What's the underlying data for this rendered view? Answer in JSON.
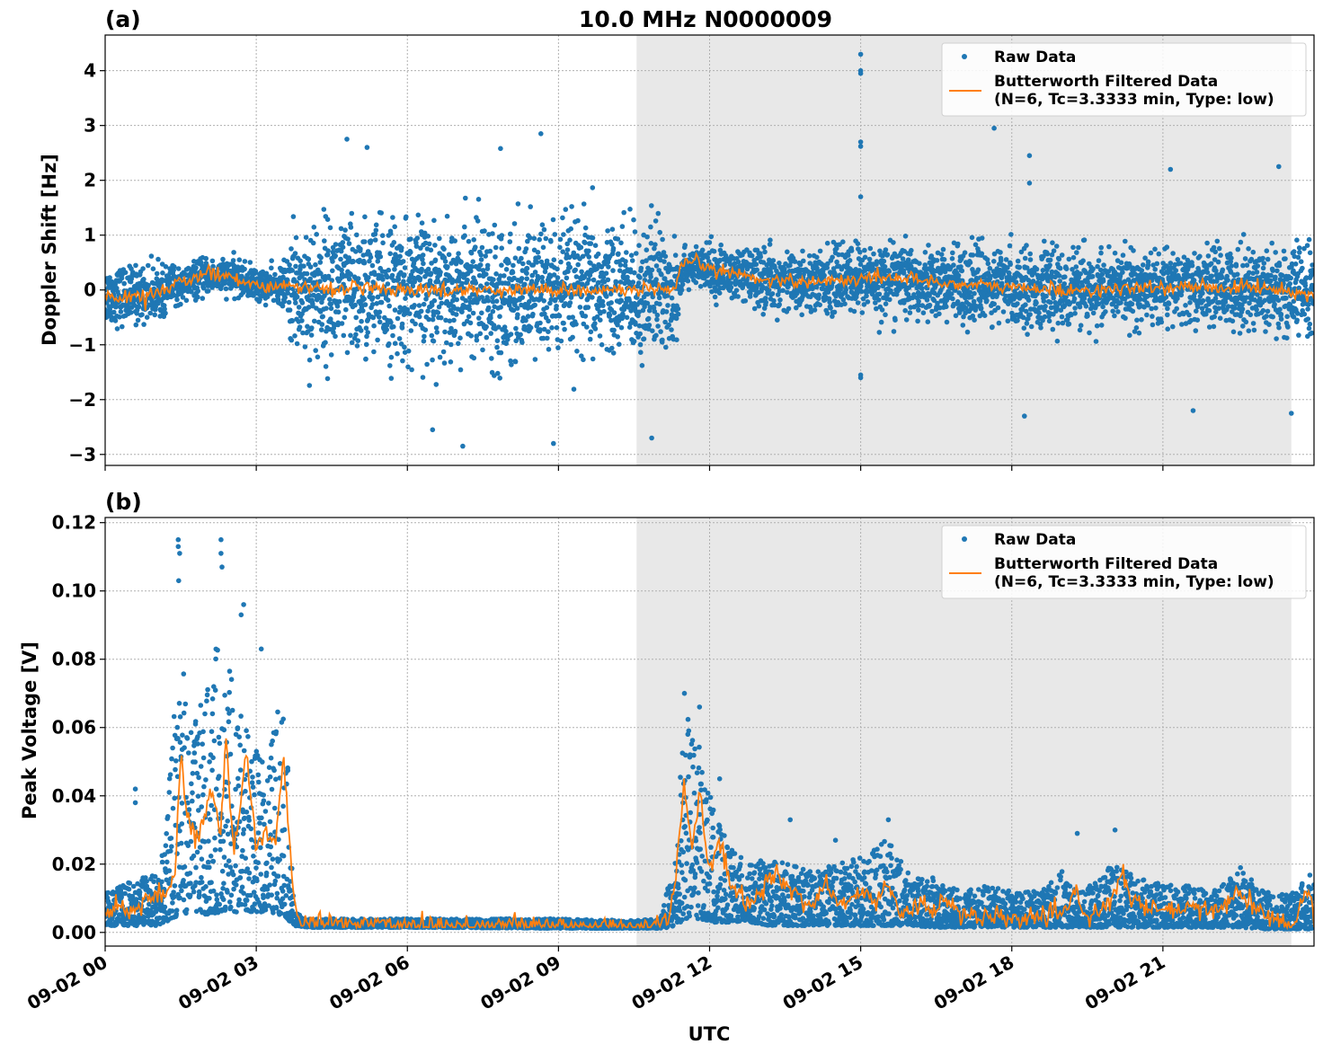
{
  "chart_data": {
    "type": "scatter",
    "title": "10.0 MHz N0000009",
    "xlabel": "UTC",
    "x_ticks": [
      "09-02 00",
      "09-02 03",
      "09-02 06",
      "09-02 09",
      "09-02 12",
      "09-02 15",
      "09-02 18",
      "09-02 21"
    ],
    "x_range_hours": [
      0,
      24
    ],
    "shaded_region_hours": [
      10.55,
      23.55
    ],
    "shade_color": "#e8e8e8",
    "grid": true,
    "legend_placement": "top-right",
    "panels": [
      {
        "panel_label": "(a)",
        "ylabel": "Doppler Shift [Hz]",
        "ylim": [
          -3.2,
          4.65
        ],
        "y_ticks": [
          -3,
          -2,
          -1,
          0,
          1,
          2,
          3,
          4
        ],
        "y_tick_labels": [
          "−3",
          "−2",
          "−1",
          "0",
          "1",
          "2",
          "3",
          "4"
        ],
        "series": [
          {
            "name": "Raw Data",
            "style": "markers",
            "color": "#1f77b4",
            "envelope": {
              "x": [
                0,
                0.5,
                1.0,
                1.5,
                2.0,
                2.5,
                3.0,
                3.5,
                3.75,
                4.0,
                5.0,
                6.0,
                7.0,
                8.0,
                9.0,
                10.0,
                10.5,
                11.0,
                11.3,
                11.5,
                12.0,
                13.0,
                14.0,
                15.0,
                16.0,
                17.0,
                18.0,
                19.0,
                20.0,
                21.0,
                22.0,
                23.0,
                24.0
              ],
              "center": [
                -0.1,
                -0.1,
                -0.05,
                0.1,
                0.25,
                0.25,
                0.1,
                0.05,
                0.0,
                0.0,
                0.0,
                0.0,
                0.0,
                0.0,
                0.0,
                0.0,
                0.0,
                0.0,
                0.0,
                0.45,
                0.35,
                0.2,
                0.15,
                0.2,
                0.2,
                0.1,
                0.05,
                0.0,
                0.0,
                0.05,
                0.05,
                0.05,
                -0.1
              ],
              "spread": [
                0.6,
                0.6,
                0.55,
                0.4,
                0.35,
                0.35,
                0.35,
                0.35,
                1.3,
                1.45,
                1.5,
                1.45,
                1.45,
                1.45,
                1.45,
                1.4,
                1.4,
                1.4,
                1.35,
                0.35,
                0.5,
                0.6,
                0.65,
                0.75,
                0.75,
                0.75,
                0.8,
                0.8,
                0.75,
                0.75,
                0.8,
                0.9,
                1.0
              ]
            },
            "outliers": [
              {
                "x": 15.0,
                "y": 4.3
              },
              {
                "x": 15.0,
                "y": 4.0
              },
              {
                "x": 15.0,
                "y": 3.95
              },
              {
                "x": 15.0,
                "y": 2.7
              },
              {
                "x": 15.0,
                "y": 2.62
              },
              {
                "x": 15.0,
                "y": 1.7
              },
              {
                "x": 15.0,
                "y": -1.55
              },
              {
                "x": 15.0,
                "y": -1.6
              },
              {
                "x": 17.65,
                "y": 2.95
              },
              {
                "x": 18.35,
                "y": 2.45
              },
              {
                "x": 18.35,
                "y": 1.95
              },
              {
                "x": 8.65,
                "y": 2.85
              },
              {
                "x": 4.8,
                "y": 2.75
              },
              {
                "x": 5.2,
                "y": 2.6
              },
              {
                "x": 7.85,
                "y": 2.58
              },
              {
                "x": 21.15,
                "y": 2.2
              },
              {
                "x": 23.3,
                "y": 2.25
              },
              {
                "x": 7.1,
                "y": -2.85
              },
              {
                "x": 8.9,
                "y": -2.8
              },
              {
                "x": 10.85,
                "y": -2.7
              },
              {
                "x": 6.5,
                "y": -2.55
              },
              {
                "x": 18.25,
                "y": -2.3
              },
              {
                "x": 23.55,
                "y": -2.25
              },
              {
                "x": 21.6,
                "y": -2.2
              }
            ]
          },
          {
            "name": "Butterworth Filtered Data\n(N=6, Tc=3.3333 min, Type: low)",
            "style": "line",
            "color": "#ff7f0e",
            "x": [
              0,
              0.5,
              1.0,
              1.5,
              2.0,
              2.5,
              3.0,
              3.5,
              3.75,
              4.0,
              6.0,
              9.0,
              10.5,
              11.0,
              11.3,
              11.45,
              11.7,
              12.0,
              13.0,
              14.0,
              15.0,
              15.5,
              16.0,
              17.0,
              18.0,
              19.0,
              20.0,
              21.0,
              22.0,
              23.0,
              24.0
            ],
            "y": [
              -0.1,
              -0.15,
              -0.05,
              0.15,
              0.3,
              0.25,
              0.1,
              0.05,
              0.05,
              0.05,
              0.0,
              0.0,
              0.0,
              0.0,
              -0.05,
              0.45,
              0.52,
              0.4,
              0.2,
              0.15,
              0.2,
              0.25,
              0.2,
              0.1,
              0.05,
              0.0,
              0.0,
              0.05,
              0.05,
              0.05,
              -0.1
            ]
          }
        ]
      },
      {
        "panel_label": "(b)",
        "ylabel": "Peak Voltage [V]",
        "ylim": [
          -0.004,
          0.1215
        ],
        "y_ticks": [
          0.0,
          0.02,
          0.04,
          0.06,
          0.08,
          0.1,
          0.12
        ],
        "y_tick_labels": [
          "0.00",
          "0.02",
          "0.04",
          "0.06",
          "0.08",
          "0.10",
          "0.12"
        ],
        "series": [
          {
            "name": "Raw Data",
            "style": "markers",
            "color": "#1f77b4",
            "envelope": {
              "x": [
                0,
                0.5,
                1.0,
                1.2,
                1.45,
                1.7,
                2.0,
                2.3,
                2.6,
                2.9,
                3.2,
                3.55,
                3.75,
                4.0,
                6.0,
                9.0,
                10.5,
                11.0,
                11.3,
                11.5,
                11.8,
                12.1,
                12.4,
                12.8,
                13.2,
                13.6,
                14.0,
                14.5,
                15.0,
                15.5,
                16.0,
                16.5,
                17.0,
                17.5,
                18.0,
                18.5,
                19.0,
                19.3,
                19.6,
                20.0,
                20.5,
                21.0,
                21.5,
                22.0,
                22.5,
                23.0,
                23.55,
                24.0
              ],
              "low": [
                0.002,
                0.002,
                0.002,
                0.003,
                0.005,
                0.006,
                0.005,
                0.006,
                0.006,
                0.006,
                0.006,
                0.005,
                0.002,
                0.0015,
                0.0015,
                0.0012,
                0.0012,
                0.0012,
                0.0015,
                0.004,
                0.004,
                0.003,
                0.003,
                0.003,
                0.002,
                0.002,
                0.002,
                0.002,
                0.002,
                0.002,
                0.002,
                0.0015,
                0.0015,
                0.0015,
                0.0015,
                0.0015,
                0.0015,
                0.0015,
                0.0015,
                0.0015,
                0.0015,
                0.0015,
                0.0015,
                0.0015,
                0.0015,
                0.001,
                0.001,
                0.001
              ],
              "high": [
                0.012,
                0.015,
                0.018,
                0.025,
                0.09,
                0.06,
                0.07,
                0.09,
                0.07,
                0.055,
                0.05,
                0.075,
                0.006,
                0.004,
                0.004,
                0.004,
                0.0035,
                0.004,
                0.02,
                0.065,
                0.055,
                0.035,
                0.025,
                0.02,
                0.022,
                0.02,
                0.018,
                0.02,
                0.022,
                0.028,
                0.016,
                0.016,
                0.012,
                0.014,
                0.012,
                0.012,
                0.018,
                0.012,
                0.014,
                0.02,
                0.016,
                0.014,
                0.014,
                0.012,
                0.02,
                0.012,
                0.012,
                0.018
              ]
            },
            "outliers": [
              {
                "x": 1.45,
                "y": 0.115
              },
              {
                "x": 1.45,
                "y": 0.113
              },
              {
                "x": 1.48,
                "y": 0.111
              },
              {
                "x": 1.46,
                "y": 0.103
              },
              {
                "x": 2.3,
                "y": 0.115
              },
              {
                "x": 2.3,
                "y": 0.111
              },
              {
                "x": 2.32,
                "y": 0.107
              },
              {
                "x": 2.75,
                "y": 0.096
              },
              {
                "x": 2.7,
                "y": 0.093
              },
              {
                "x": 3.1,
                "y": 0.083
              },
              {
                "x": 0.6,
                "y": 0.042
              },
              {
                "x": 0.6,
                "y": 0.038
              },
              {
                "x": 11.5,
                "y": 0.07
              },
              {
                "x": 11.8,
                "y": 0.066
              },
              {
                "x": 12.2,
                "y": 0.045
              },
              {
                "x": 20.05,
                "y": 0.03
              },
              {
                "x": 19.3,
                "y": 0.029
              },
              {
                "x": 15.55,
                "y": 0.033
              },
              {
                "x": 14.5,
                "y": 0.027
              },
              {
                "x": 13.6,
                "y": 0.033
              }
            ]
          },
          {
            "name": "Butterworth Filtered Data\n(N=6, Tc=3.3333 min, Type: low)",
            "style": "line",
            "color": "#ff7f0e",
            "x": [
              0,
              0.3,
              0.6,
              0.9,
              1.2,
              1.4,
              1.5,
              1.6,
              1.8,
              2.0,
              2.1,
              2.3,
              2.4,
              2.55,
              2.7,
              2.8,
              3.0,
              3.2,
              3.4,
              3.55,
              3.7,
              3.8,
              4.0,
              6.0,
              9.0,
              10.5,
              11.2,
              11.35,
              11.5,
              11.65,
              11.8,
              12.0,
              12.2,
              12.4,
              12.6,
              12.8,
              13.0,
              13.3,
              13.6,
              14.0,
              14.3,
              14.6,
              15.0,
              15.3,
              15.5,
              15.8,
              16.2,
              16.5,
              16.6,
              17.0,
              17.5,
              18.0,
              18.5,
              19.0,
              19.3,
              19.5,
              20.0,
              20.2,
              20.5,
              21.0,
              21.5,
              22.0,
              22.5,
              23.0,
              23.5,
              23.6,
              23.9,
              24.0
            ],
            "y": [
              0.006,
              0.008,
              0.006,
              0.012,
              0.01,
              0.02,
              0.055,
              0.035,
              0.028,
              0.035,
              0.042,
              0.028,
              0.057,
              0.022,
              0.038,
              0.054,
              0.024,
              0.03,
              0.028,
              0.05,
              0.018,
              0.005,
              0.003,
              0.0025,
              0.002,
              0.002,
              0.003,
              0.02,
              0.044,
              0.024,
              0.04,
              0.018,
              0.028,
              0.014,
              0.01,
              0.008,
              0.012,
              0.018,
              0.012,
              0.008,
              0.014,
              0.008,
              0.012,
              0.008,
              0.016,
              0.006,
              0.008,
              0.005,
              0.012,
              0.005,
              0.004,
              0.004,
              0.004,
              0.005,
              0.012,
              0.004,
              0.01,
              0.016,
              0.008,
              0.006,
              0.007,
              0.006,
              0.012,
              0.005,
              0.0025,
              0.003,
              0.013,
              0.005
            ]
          }
        ]
      }
    ]
  }
}
